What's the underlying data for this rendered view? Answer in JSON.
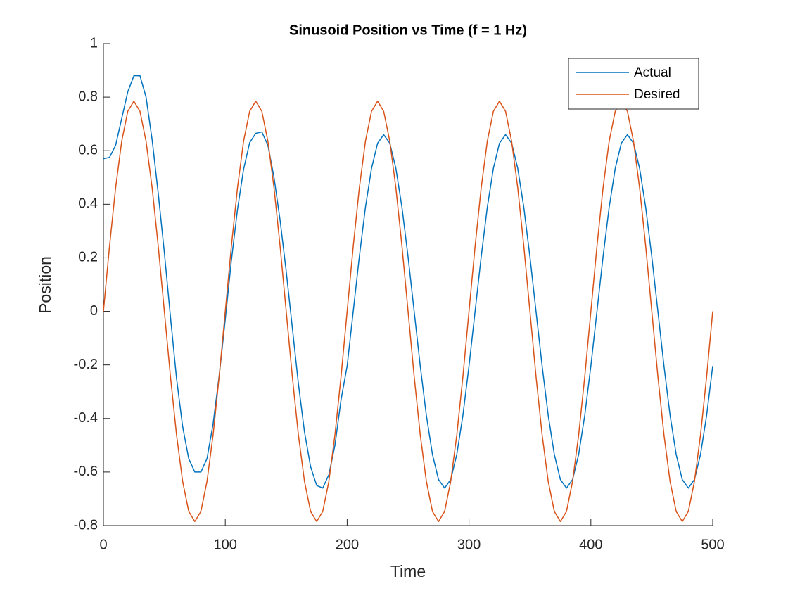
{
  "chart_data": {
    "type": "line",
    "title": "Sinusoid Position vs Time (f = 1 Hz)",
    "x_label": "Time",
    "y_label": "Position",
    "x": [
      0,
      5,
      10,
      15,
      20,
      25,
      30,
      35,
      40,
      45,
      50,
      55,
      60,
      65,
      70,
      75,
      80,
      85,
      90,
      95,
      100,
      105,
      110,
      115,
      120,
      125,
      130,
      135,
      140,
      145,
      150,
      155,
      160,
      165,
      170,
      175,
      180,
      185,
      190,
      195,
      200,
      205,
      210,
      215,
      220,
      225,
      230,
      235,
      240,
      245,
      250,
      255,
      260,
      265,
      270,
      275,
      280,
      285,
      290,
      295,
      300,
      305,
      310,
      315,
      320,
      325,
      330,
      335,
      340,
      345,
      350,
      355,
      360,
      365,
      370,
      375,
      380,
      385,
      390,
      395,
      400,
      405,
      410,
      415,
      420,
      425,
      430,
      435,
      440,
      445,
      450,
      455,
      460,
      465,
      470,
      475,
      480,
      485,
      490,
      495,
      500
    ],
    "series": [
      {
        "name": "Actual",
        "color": "#0072BD",
        "values": [
          0.57,
          0.575,
          0.62,
          0.72,
          0.82,
          0.88,
          0.88,
          0.8,
          0.64,
          0.44,
          0.22,
          -0.02,
          -0.25,
          -0.43,
          -0.55,
          -0.6,
          -0.6,
          -0.55,
          -0.42,
          -0.24,
          -0.03,
          0.19,
          0.38,
          0.53,
          0.63,
          0.665,
          0.67,
          0.62,
          0.5,
          0.34,
          0.15,
          -0.06,
          -0.27,
          -0.45,
          -0.58,
          -0.65,
          -0.66,
          -0.61,
          -0.5,
          -0.33,
          -0.204,
          0,
          0.204,
          0.388,
          0.534,
          0.628,
          0.66,
          0.628,
          0.534,
          0.388,
          0.204,
          0,
          -0.204,
          -0.388,
          -0.534,
          -0.628,
          -0.66,
          -0.628,
          -0.534,
          -0.388,
          -0.204,
          0,
          0.204,
          0.388,
          0.534,
          0.628,
          0.66,
          0.628,
          0.534,
          0.388,
          0.204,
          0,
          -0.204,
          -0.388,
          -0.534,
          -0.628,
          -0.66,
          -0.628,
          -0.534,
          -0.388,
          -0.204,
          0,
          0.204,
          0.388,
          0.534,
          0.628,
          0.66,
          0.628,
          0.534,
          0.388,
          0.204,
          0,
          -0.204,
          -0.388,
          -0.534,
          -0.628,
          -0.66,
          -0.628,
          -0.534,
          -0.388,
          -0.204
        ]
      },
      {
        "name": "Desired",
        "color": "#D95319",
        "values": [
          0,
          0.243,
          0.461,
          0.635,
          0.747,
          0.785,
          0.747,
          0.635,
          0.461,
          0.243,
          0,
          -0.243,
          -0.461,
          -0.635,
          -0.747,
          -0.785,
          -0.747,
          -0.635,
          -0.461,
          -0.243,
          0,
          0.243,
          0.461,
          0.635,
          0.747,
          0.785,
          0.747,
          0.635,
          0.461,
          0.243,
          0,
          -0.243,
          -0.461,
          -0.635,
          -0.747,
          -0.785,
          -0.747,
          -0.635,
          -0.461,
          -0.243,
          0,
          0.243,
          0.461,
          0.635,
          0.747,
          0.785,
          0.747,
          0.635,
          0.461,
          0.243,
          0,
          -0.243,
          -0.461,
          -0.635,
          -0.747,
          -0.785,
          -0.747,
          -0.635,
          -0.461,
          -0.243,
          0,
          0.243,
          0.461,
          0.635,
          0.747,
          0.785,
          0.747,
          0.635,
          0.461,
          0.243,
          0,
          -0.243,
          -0.461,
          -0.635,
          -0.747,
          -0.785,
          -0.747,
          -0.635,
          -0.461,
          -0.243,
          0,
          0.243,
          0.461,
          0.635,
          0.747,
          0.785,
          0.747,
          0.635,
          0.461,
          0.243,
          0,
          -0.243,
          -0.461,
          -0.635,
          -0.747,
          -0.785,
          -0.747,
          -0.635,
          -0.461,
          -0.243,
          0
        ]
      }
    ],
    "xlim": [
      0,
      500
    ],
    "xticks": [
      0,
      100,
      200,
      300,
      400,
      500
    ],
    "ylim": [
      -0.8,
      1
    ],
    "yticks": [
      -0.8,
      -0.6,
      -0.4,
      -0.2,
      0,
      0.2,
      0.4,
      0.6,
      0.8,
      1
    ],
    "grid": false,
    "legend": "northeast"
  }
}
